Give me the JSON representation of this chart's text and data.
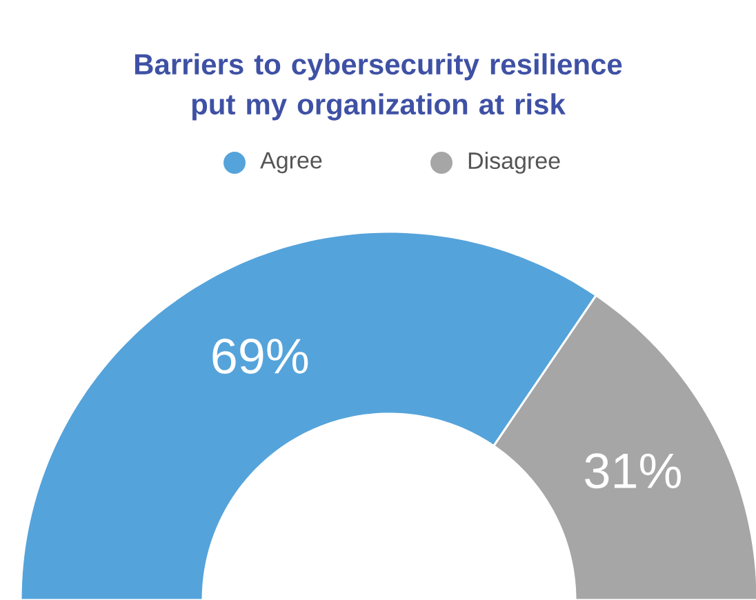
{
  "chart_data": {
    "type": "donut",
    "title": "Barriers to cybersecurity resilience put my organization at risk",
    "categories": [
      "Agree",
      "Disagree"
    ],
    "values": [
      69,
      31
    ],
    "colors": [
      "#55a3db",
      "#a6a6a6"
    ],
    "value_labels": [
      "69%",
      "31%"
    ],
    "legend": "top"
  }
}
